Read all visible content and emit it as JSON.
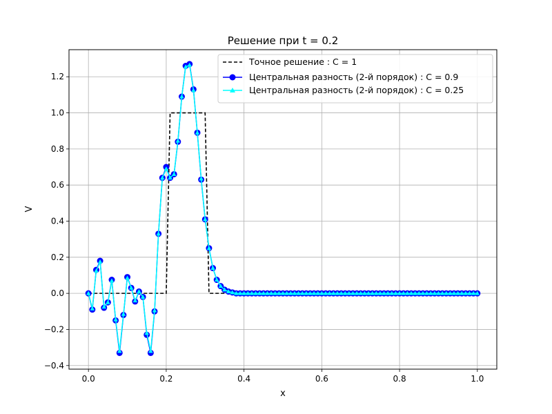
{
  "chart_data": {
    "type": "line",
    "title": "Решение при t = 0.2",
    "xlabel": "x",
    "ylabel": "V",
    "xlim": [
      -0.05,
      1.05
    ],
    "ylim": [
      -0.42,
      1.35
    ],
    "xticks": [
      0.0,
      0.2,
      0.4,
      0.6,
      0.8,
      1.0
    ],
    "xtick_labels": [
      "0.0",
      "0.2",
      "0.4",
      "0.6",
      "0.8",
      "1.0"
    ],
    "yticks": [
      -0.4,
      -0.2,
      0.0,
      0.2,
      0.4,
      0.6,
      0.8,
      1.0,
      1.2
    ],
    "ytick_labels": [
      "−0.4",
      "−0.2",
      "0.0",
      "0.2",
      "0.4",
      "0.6",
      "0.8",
      "1.0",
      "1.2"
    ],
    "grid": true,
    "legend_position": "top-right",
    "exact_solution": {
      "name": "Точное решение : C = 1",
      "color": "#000000",
      "x": [
        0.0,
        0.2,
        0.21,
        0.3,
        0.31,
        1.0
      ],
      "y": [
        0.0,
        0.0,
        1.0,
        1.0,
        0.0,
        0.0
      ]
    },
    "series": [
      {
        "name": "Центральная разность (2-й порядок) : C = 0.9",
        "color": "#0000ff",
        "marker": "circle",
        "x_start": 0.0,
        "x_step": 0.01,
        "values": [
          0.0,
          -0.09,
          0.13,
          0.18,
          -0.08,
          -0.05,
          0.075,
          -0.15,
          -0.33,
          -0.12,
          0.09,
          0.03,
          -0.045,
          0.01,
          -0.02,
          -0.23,
          -0.33,
          -0.1,
          0.33,
          0.64,
          0.7,
          0.64,
          0.66,
          0.84,
          1.09,
          1.26,
          1.27,
          1.13,
          0.89,
          0.63,
          0.41,
          0.25,
          0.14,
          0.075,
          0.04,
          0.02,
          0.01,
          0.005,
          0.0
        ]
      },
      {
        "name": "Центральная разность (2-й порядок) : C = 0.25",
        "color": "#00ffff",
        "marker": "triangle",
        "x_start": 0.0,
        "x_step": 0.01,
        "values": [
          0.0,
          -0.085,
          0.125,
          0.175,
          -0.075,
          -0.05,
          0.07,
          -0.145,
          -0.32,
          -0.115,
          0.085,
          0.03,
          -0.04,
          0.01,
          -0.02,
          -0.22,
          -0.32,
          -0.095,
          0.33,
          0.64,
          0.69,
          0.64,
          0.66,
          0.845,
          1.09,
          1.255,
          1.265,
          1.125,
          0.89,
          0.635,
          0.41,
          0.25,
          0.14,
          0.075,
          0.04,
          0.02,
          0.01,
          0.005,
          0.0
        ]
      }
    ]
  }
}
